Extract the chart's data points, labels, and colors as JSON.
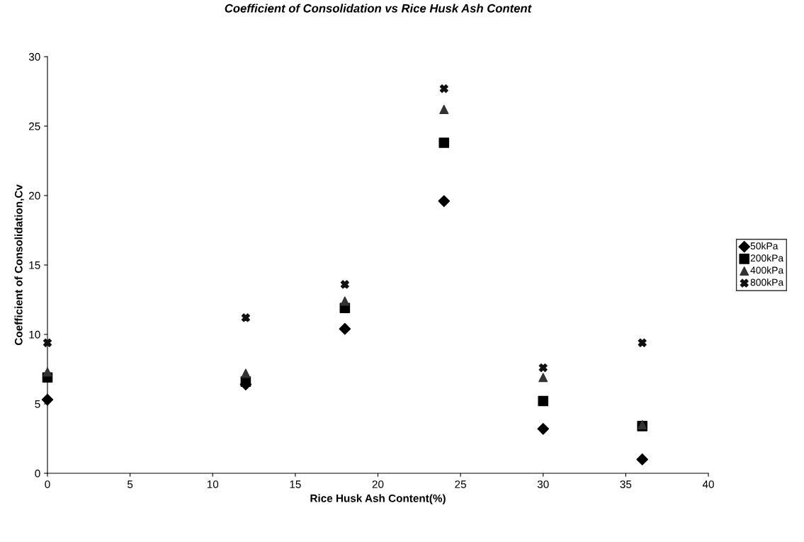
{
  "chart_data": {
    "type": "scatter",
    "title": "Coefficient of Consolidation vs Rice Husk Ash Content",
    "xlabel": "Rice Husk Ash Content(%)",
    "ylabel": "Coefficient of Consolidation,Cv",
    "x": [
      0,
      12,
      18,
      24,
      30,
      36
    ],
    "series": [
      {
        "name": "50kPa",
        "color": "#000000",
        "marker": "diamond",
        "values": [
          5.3,
          6.4,
          10.4,
          19.6,
          3.2,
          1.0
        ]
      },
      {
        "name": "200kPa",
        "color": "#000000",
        "marker": "square",
        "values": [
          6.9,
          6.6,
          11.9,
          23.8,
          5.2,
          3.4
        ]
      },
      {
        "name": "400kPa",
        "color": "#333333",
        "marker": "triangle",
        "values": [
          7.3,
          7.2,
          12.4,
          26.2,
          6.9,
          3.5
        ]
      },
      {
        "name": "800kPa",
        "color": "#111111",
        "marker": "cross",
        "values": [
          9.4,
          11.2,
          13.6,
          27.7,
          7.6,
          9.4
        ]
      }
    ],
    "xlim": [
      0,
      40
    ],
    "xticks": [
      0,
      5,
      10,
      15,
      20,
      25,
      30,
      35,
      40
    ],
    "ylim": [
      0,
      30
    ],
    "yticks": [
      0,
      5,
      10,
      15,
      20,
      25,
      30
    ],
    "grid": false,
    "legend": "right"
  }
}
